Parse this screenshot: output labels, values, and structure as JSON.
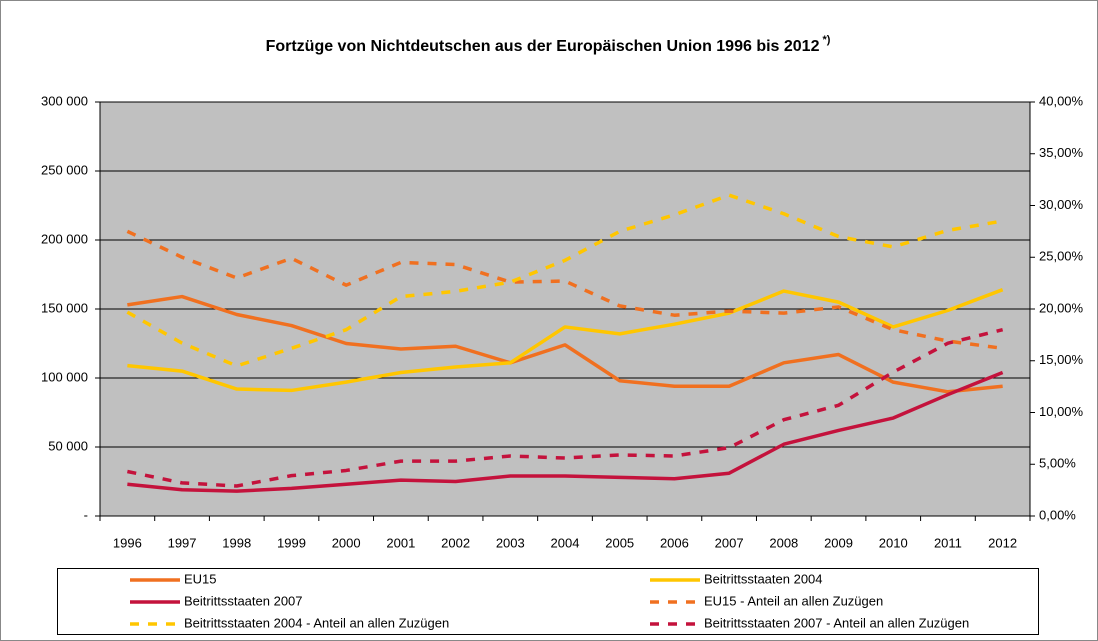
{
  "chart_data": {
    "type": "line",
    "title": "Fortzüge von Nichtdeutschen aus der Europäischen Union 1996 bis 2012",
    "title_note": "*)",
    "categories": [
      "1996",
      "1997",
      "1998",
      "1999",
      "2000",
      "2001",
      "2002",
      "2003",
      "2004",
      "2005",
      "2006",
      "2007",
      "2008",
      "2009",
      "2010",
      "2011",
      "2012"
    ],
    "ylim": [
      0,
      300000
    ],
    "yticks": [
      {
        "value": 0,
        "label": "-"
      },
      {
        "value": 50000,
        "label": "50 000"
      },
      {
        "value": 100000,
        "label": "100 000"
      },
      {
        "value": 150000,
        "label": "150 000"
      },
      {
        "value": 200000,
        "label": "200 000"
      },
      {
        "value": 250000,
        "label": "250 000"
      },
      {
        "value": 300000,
        "label": "300 000"
      }
    ],
    "y2lim": [
      0,
      40
    ],
    "y2ticks": [
      {
        "value": 0,
        "label": "0,00%"
      },
      {
        "value": 5,
        "label": "5,00%"
      },
      {
        "value": 10,
        "label": "10,00%"
      },
      {
        "value": 15,
        "label": "15,00%"
      },
      {
        "value": 20,
        "label": "20,00%"
      },
      {
        "value": 25,
        "label": "25,00%"
      },
      {
        "value": 30,
        "label": "30,00%"
      },
      {
        "value": 35,
        "label": "35,00%"
      },
      {
        "value": 40,
        "label": "40,00%"
      }
    ],
    "grid": true,
    "legend": "bottom",
    "series": [
      {
        "name": "EU15",
        "color": "#f07020",
        "dashed": false,
        "values": [
          153000,
          159000,
          146000,
          138000,
          125000,
          121000,
          123000,
          111000,
          124000,
          98000,
          94000,
          94000,
          111000,
          117000,
          97000,
          90000,
          94000
        ]
      },
      {
        "name": "Beitrittsstaaten 2004",
        "color": "#ffc600",
        "dashed": false,
        "values": [
          109000,
          105000,
          92000,
          91000,
          97000,
          104000,
          108000,
          111000,
          137000,
          132000,
          139000,
          147000,
          163000,
          155000,
          137000,
          149000,
          164000
        ]
      },
      {
        "name": "Beitrittsstaaten 2007",
        "color": "#c4123c",
        "dashed": false,
        "values": [
          23000,
          19000,
          18000,
          20000,
          23000,
          26000,
          25000,
          29000,
          29000,
          28000,
          27000,
          31000,
          52000,
          62000,
          71000,
          88000,
          104000
        ]
      },
      {
        "name": "EU15 - Anteil an allen Zuzügen",
        "color": "#f07020",
        "dashed": true,
        "axis": "y2",
        "values": [
          27.5,
          25,
          23,
          24.9,
          22.3,
          24.5,
          24.3,
          22.6,
          22.7,
          20.3,
          19.4,
          19.8,
          19.6,
          20.2,
          18,
          16.9,
          16.2
        ]
      },
      {
        "name": "Beitrittsstaaten 2004 - Anteil an allen Zuzügen",
        "color": "#ffc600",
        "dashed": true,
        "axis": "y2",
        "values": [
          19.7,
          16.7,
          14.5,
          16.2,
          18,
          21.2,
          21.7,
          22.6,
          24.7,
          27.5,
          29.1,
          31,
          29.2,
          27,
          26,
          27.6,
          28.5
        ]
      },
      {
        "name": "Beitrittsstaaten 2007 - Anteil an allen Zuzügen",
        "color": "#c4123c",
        "dashed": true,
        "axis": "y2",
        "values": [
          4.3,
          3.2,
          2.9,
          3.9,
          4.4,
          5.3,
          5.3,
          5.8,
          5.6,
          5.9,
          5.8,
          6.6,
          9.3,
          10.7,
          13.9,
          16.7,
          18
        ]
      }
    ]
  }
}
